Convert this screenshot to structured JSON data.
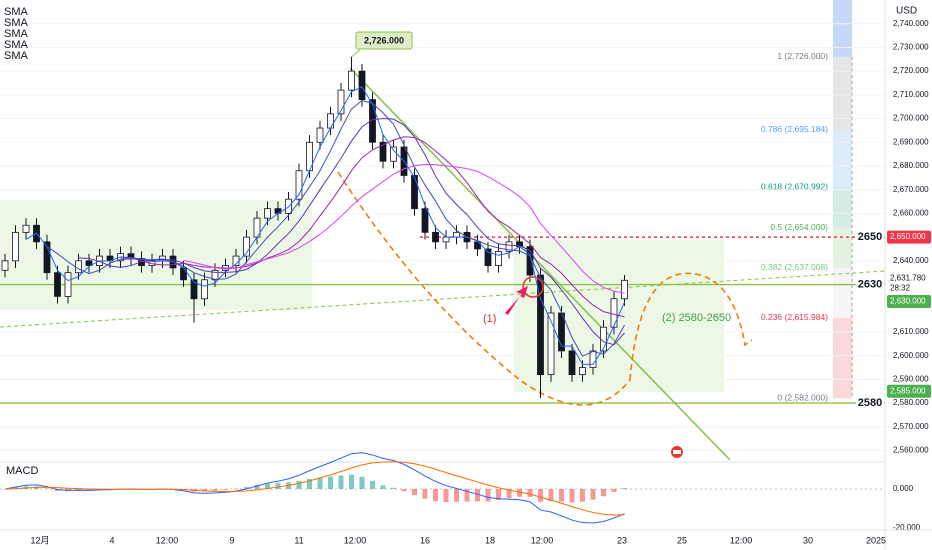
{
  "chart_data": {
    "type": "candlestick",
    "currency": "USD",
    "indicators": [
      "SMA",
      "SMA",
      "SMA",
      "SMA",
      "SMA"
    ],
    "ylim": [
      2556,
      2750
    ],
    "grid": true,
    "yticks": [
      {
        "value": 2560,
        "label": "2,560.000"
      },
      {
        "value": 2570,
        "label": "2,570.000"
      },
      {
        "value": 2580,
        "label": "2,580.000"
      },
      {
        "value": 2590,
        "label": "2,590.000"
      },
      {
        "value": 2600,
        "label": "2,600.000"
      },
      {
        "value": 2610,
        "label": "2,610.000"
      },
      {
        "value": 2640,
        "label": "2,640.000"
      },
      {
        "value": 2660,
        "label": "2,660.000"
      },
      {
        "value": 2670,
        "label": "2,670.000"
      },
      {
        "value": 2680,
        "label": "2,680.000"
      },
      {
        "value": 2690,
        "label": "2,690.000"
      },
      {
        "value": 2700,
        "label": "2,700.000"
      },
      {
        "value": 2710,
        "label": "2,710.000"
      },
      {
        "value": 2720,
        "label": "2,720.000"
      },
      {
        "value": 2730,
        "label": "2,730.000"
      },
      {
        "value": 2740,
        "label": "2,740.000"
      }
    ],
    "xticks": [
      "12月",
      "4",
      "12:00",
      "9",
      "11",
      "12:00",
      "16",
      "18",
      "12:00",
      "23",
      "25",
      "12:00",
      "30",
      "2025"
    ],
    "ohlc": {
      "open": [
        2636,
        2640,
        2652,
        2655,
        2648,
        2635,
        2625,
        2635,
        2640,
        2638,
        2642,
        2640,
        2643,
        2641,
        2638,
        2640,
        2642,
        2637,
        2632,
        2624,
        2632,
        2636,
        2638,
        2642,
        2650,
        2658,
        2662,
        2660,
        2666,
        2678,
        2690,
        2696,
        2702,
        2712,
        2720,
        2708,
        2690,
        2682,
        2688,
        2676,
        2662,
        2652,
        2648,
        2650,
        2652,
        2648,
        2645,
        2638,
        2644,
        2648,
        2646,
        2634,
        2592,
        2618,
        2602,
        2592,
        2595,
        2602,
        2612,
        2624
      ],
      "high": [
        2643,
        2655,
        2658,
        2658,
        2651,
        2638,
        2638,
        2643,
        2643,
        2645,
        2645,
        2646,
        2646,
        2644,
        2643,
        2645,
        2645,
        2640,
        2635,
        2635,
        2639,
        2641,
        2645,
        2653,
        2661,
        2665,
        2665,
        2669,
        2681,
        2693,
        2699,
        2705,
        2715,
        2726,
        2723,
        2711,
        2693,
        2691,
        2691,
        2679,
        2665,
        2655,
        2653,
        2655,
        2655,
        2651,
        2648,
        2647,
        2651,
        2651,
        2649,
        2637,
        2621,
        2621,
        2605,
        2598,
        2605,
        2615,
        2627,
        2634
      ],
      "low": [
        2633,
        2637,
        2649,
        2645,
        2632,
        2622,
        2622,
        2632,
        2635,
        2635,
        2637,
        2637,
        2638,
        2635,
        2635,
        2637,
        2634,
        2629,
        2614,
        2621,
        2629,
        2633,
        2635,
        2639,
        2647,
        2655,
        2657,
        2657,
        2663,
        2675,
        2687,
        2693,
        2699,
        2709,
        2705,
        2687,
        2679,
        2679,
        2673,
        2659,
        2649,
        2645,
        2645,
        2647,
        2645,
        2642,
        2635,
        2635,
        2641,
        2643,
        2631,
        2582,
        2589,
        2599,
        2589,
        2589,
        2592,
        2599,
        2609,
        2621
      ],
      "close": [
        2640,
        2652,
        2655,
        2648,
        2635,
        2625,
        2635,
        2640,
        2638,
        2642,
        2640,
        2643,
        2641,
        2638,
        2640,
        2642,
        2637,
        2632,
        2624,
        2632,
        2636,
        2638,
        2642,
        2650,
        2658,
        2662,
        2660,
        2666,
        2678,
        2690,
        2696,
        2702,
        2712,
        2720,
        2708,
        2690,
        2682,
        2688,
        2676,
        2662,
        2652,
        2648,
        2650,
        2652,
        2648,
        2645,
        2638,
        2644,
        2648,
        2646,
        2634,
        2592,
        2618,
        2602,
        2592,
        2595,
        2602,
        2612,
        2624,
        2631.78
      ]
    },
    "peak": {
      "value": 2726,
      "label": "2,726.000"
    },
    "fib": [
      {
        "value": 2726,
        "label": "1 (2,726.000)",
        "color": "#787b86"
      },
      {
        "value": 2695.184,
        "label": "0.786 (2,695.184)",
        "color": "#5b9cf6"
      },
      {
        "value": 2670.992,
        "label": "0.618 (2,670.992)",
        "color": "#089981"
      },
      {
        "value": 2654,
        "label": "0.5 (2,654.000)",
        "color": "#4caf50"
      },
      {
        "value": 2637.008,
        "label": "0.382 (2,637.008)",
        "color": "#81c784"
      },
      {
        "value": 2615.984,
        "label": "0.236 (2,615.984)",
        "color": "#f23645"
      },
      {
        "value": 2582,
        "label": "0 (2,582.000)",
        "color": "#787b86"
      }
    ],
    "levels": [
      2650,
      2630,
      2580
    ],
    "price_labels": [
      {
        "value": 2650,
        "label": "2,650.000",
        "color": "#f23645"
      },
      {
        "value": 2631.78,
        "label": "2,631.780",
        "color": "#ffffff"
      },
      {
        "value": 2630,
        "label": "2,630.000",
        "color": "#4caf50"
      },
      {
        "value": 2585,
        "label": "2,585.000",
        "color": "#4caf50"
      }
    ],
    "countdown": "28:32",
    "annotations": [
      "(1)",
      "(2) 2580-2650"
    ],
    "macd": {
      "title": "MACD",
      "yticks": [
        {
          "value": 0,
          "label": "0.000"
        },
        {
          "value": -20,
          "label": "-20.000"
        }
      ]
    }
  }
}
